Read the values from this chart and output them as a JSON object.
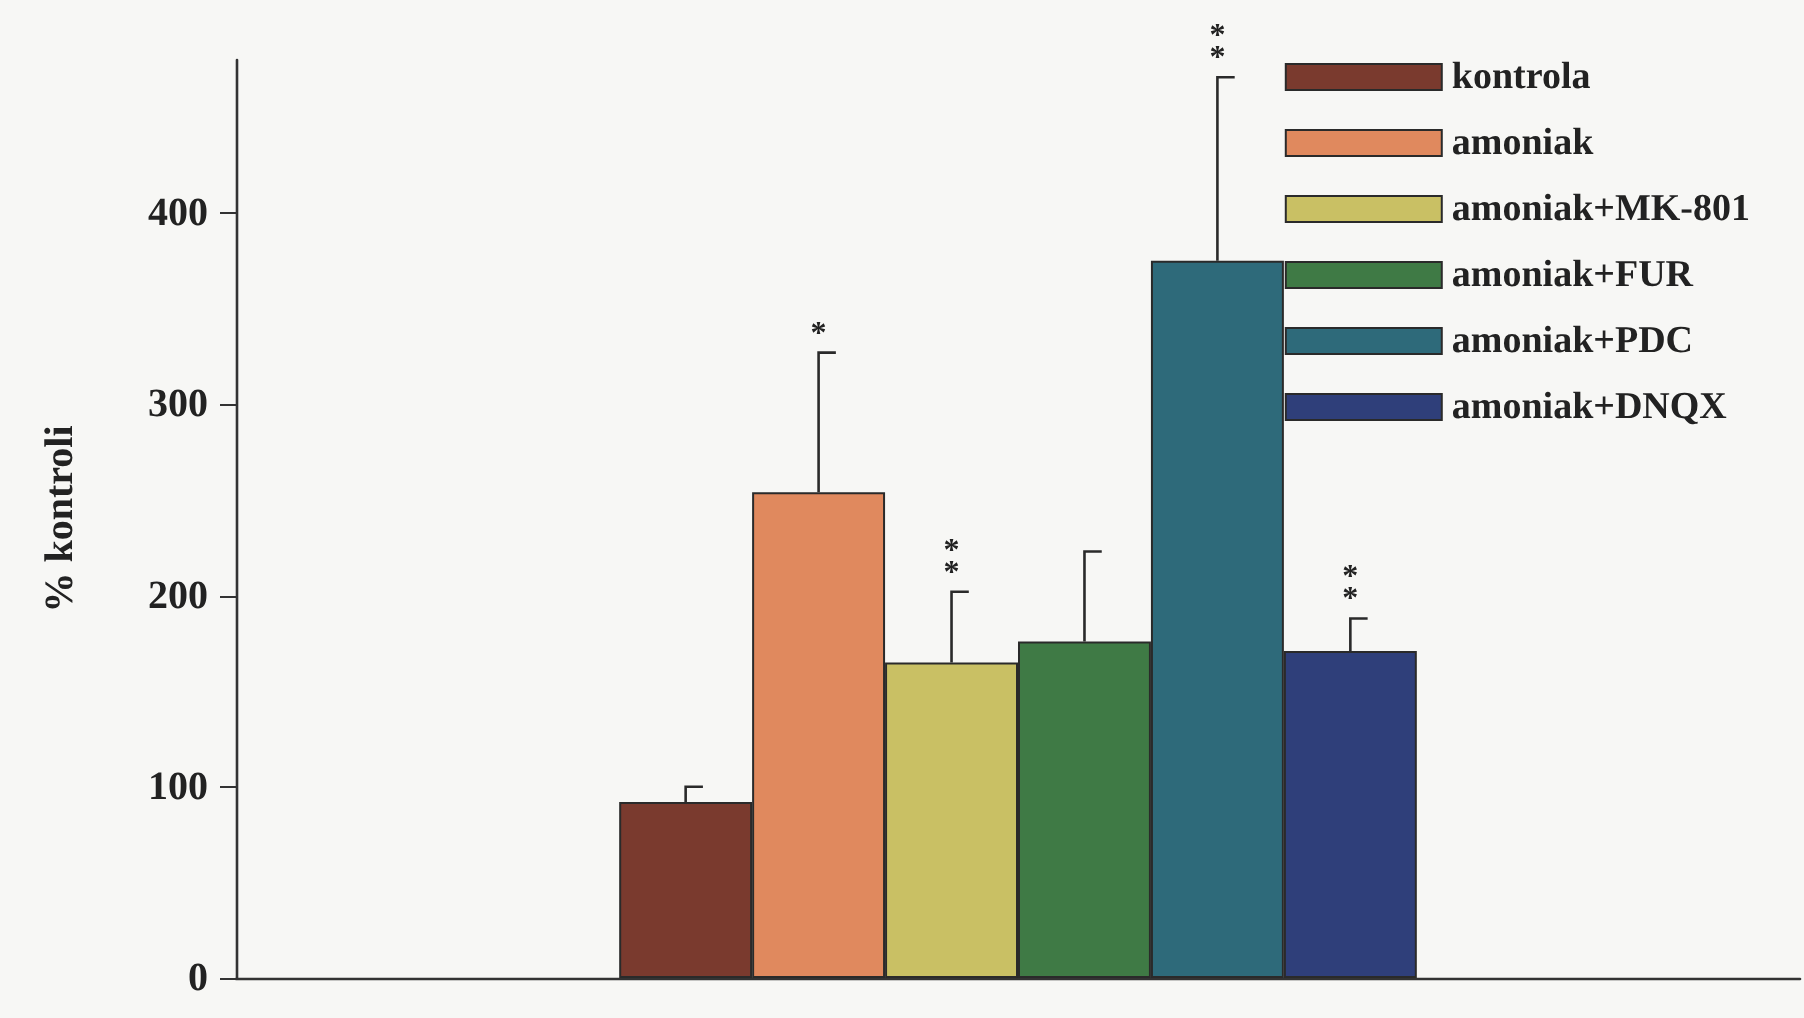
{
  "chart_data": {
    "type": "bar",
    "ylabel": "% kontroli",
    "categories": [
      null
    ],
    "series": [
      {
        "name": "kontrola",
        "color": "#7a3a2e",
        "values": [
          92
        ],
        "errors": [
          8
        ]
      },
      {
        "name": "amoniak",
        "color": "#e0895e",
        "values": [
          254
        ],
        "errors": [
          73
        ]
      },
      {
        "name": "amoniak+MK-801",
        "color": "#c9c064",
        "values": [
          165
        ],
        "errors": [
          37
        ]
      },
      {
        "name": "amoniak+FUR",
        "color": "#3f7a45",
        "values": [
          176
        ],
        "errors": [
          47
        ]
      },
      {
        "name": "amoniak+PDC",
        "color": "#2e6a7a",
        "values": [
          375
        ],
        "errors": [
          96
        ]
      },
      {
        "name": "amoniak+DNQX",
        "color": "#2f3f7a",
        "values": [
          171
        ],
        "errors": [
          17
        ]
      }
    ],
    "annotations": [
      "*",
      "**",
      "**",
      "**"
    ],
    "ylim": [
      0,
      480
    ],
    "yticks": [
      0,
      100,
      200,
      300,
      400
    ],
    "grid": false,
    "legend": "top right",
    "tick_labels": "y"
  }
}
